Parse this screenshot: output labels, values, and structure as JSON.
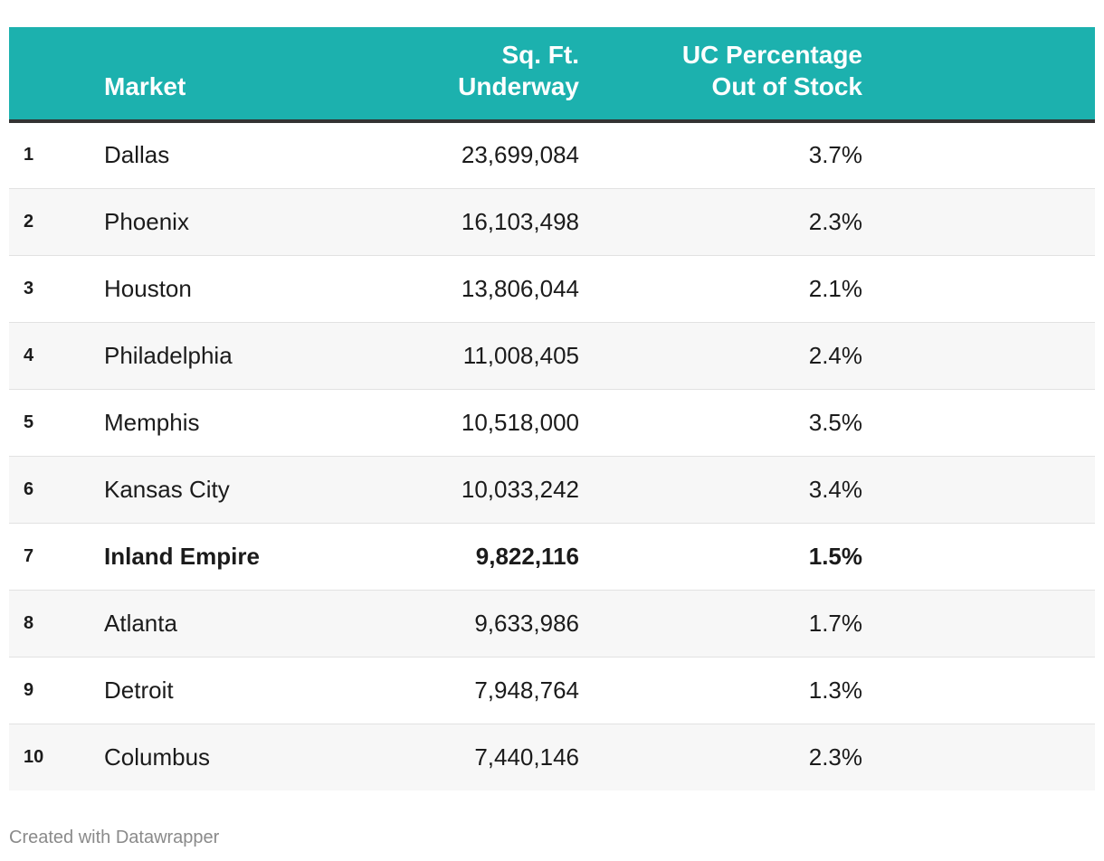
{
  "chart_data": {
    "type": "table",
    "columns": [
      "",
      "Market",
      "Sq. Ft. Underway",
      "UC Percentage Out of Stock"
    ],
    "header": {
      "rank": "",
      "market": "Market",
      "sqft_line1": "Sq. Ft.",
      "sqft_line2": "Underway",
      "pct_line1": "UC Percentage",
      "pct_line2": "Out of Stock"
    },
    "rows": [
      {
        "rank": "1",
        "market": "Dallas",
        "sqft": "23,699,084",
        "pct": "3.7%"
      },
      {
        "rank": "2",
        "market": "Phoenix",
        "sqft": "16,103,498",
        "pct": "2.3%"
      },
      {
        "rank": "3",
        "market": "Houston",
        "sqft": "13,806,044",
        "pct": "2.1%"
      },
      {
        "rank": "4",
        "market": "Philadelphia",
        "sqft": "11,008,405",
        "pct": "2.4%"
      },
      {
        "rank": "5",
        "market": "Memphis",
        "sqft": "10,518,000",
        "pct": "3.5%"
      },
      {
        "rank": "6",
        "market": "Kansas City",
        "sqft": "10,033,242",
        "pct": "3.4%"
      },
      {
        "rank": "7",
        "market": "Inland Empire",
        "sqft": "9,822,116",
        "pct": "1.5%",
        "highlight": true
      },
      {
        "rank": "8",
        "market": "Atlanta",
        "sqft": "9,633,986",
        "pct": "1.7%"
      },
      {
        "rank": "9",
        "market": "Detroit",
        "sqft": "7,948,764",
        "pct": "1.3%"
      },
      {
        "rank": "10",
        "market": "Columbus",
        "sqft": "7,440,146",
        "pct": "2.3%"
      }
    ],
    "colors": {
      "header_background": "#1cb1ae",
      "header_text": "#ffffff",
      "header_rule": "#333333",
      "stripe": "#f7f7f7"
    }
  },
  "footer": {
    "credit": "Created with Datawrapper"
  }
}
